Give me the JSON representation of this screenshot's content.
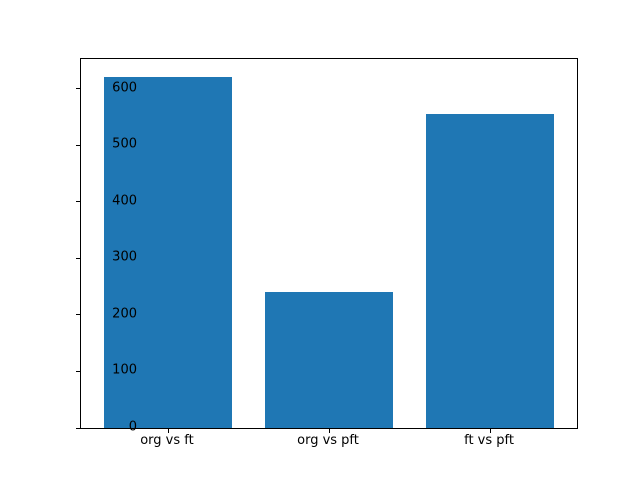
{
  "figure": {
    "background": "#ffffff"
  },
  "chart_data": {
    "type": "bar",
    "categories": [
      "org vs ft",
      "org vs pft",
      "ft vs pft"
    ],
    "values": [
      622,
      240,
      555
    ],
    "title": "",
    "xlabel": "",
    "ylabel": "",
    "ylim": [
      0,
      653
    ],
    "xlim": [
      -0.54,
      2.54
    ],
    "yticks": [
      0,
      100,
      200,
      300,
      400,
      500,
      600
    ],
    "bar_color": "#1f77b4",
    "bar_width_data_units": 0.8,
    "grid": false,
    "legend": null,
    "spine_color": "#000000",
    "tick_label_color": "#000000"
  }
}
